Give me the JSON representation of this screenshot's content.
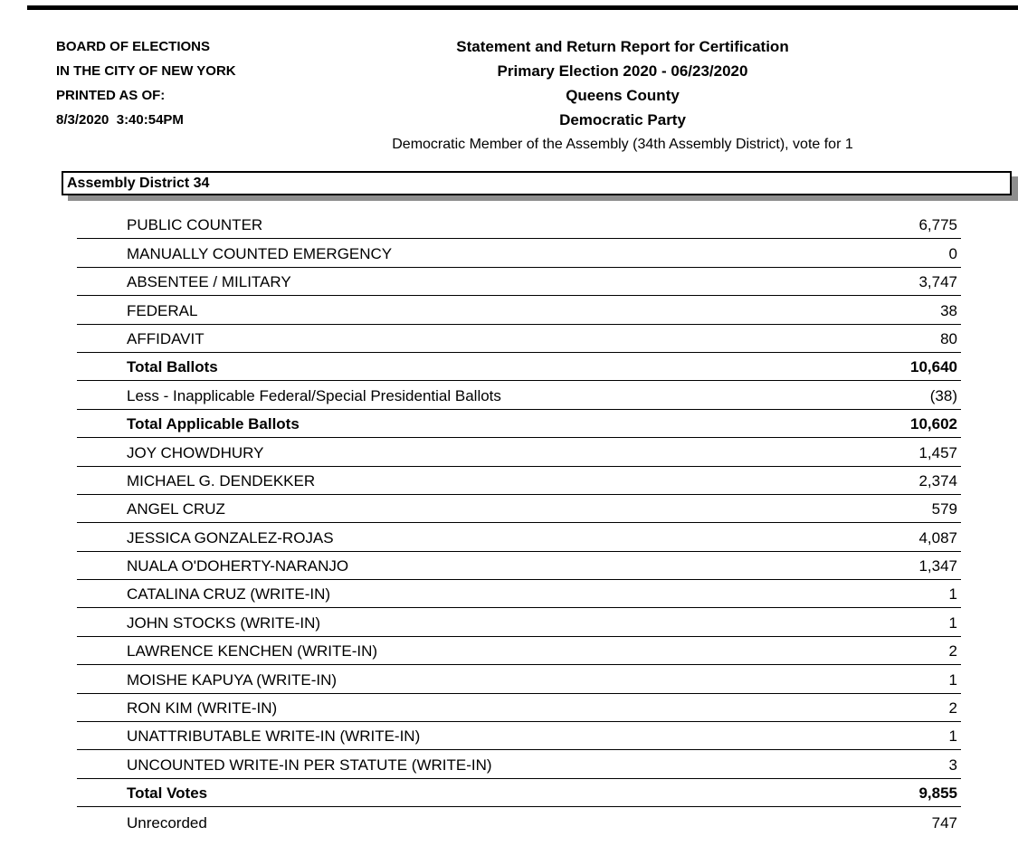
{
  "header": {
    "left": {
      "line1": "BOARD OF ELECTIONS",
      "line2": "IN THE CITY OF NEW YORK",
      "line3": "PRINTED AS OF:",
      "line4": "8/3/2020  3:40:54PM"
    },
    "center": {
      "title": "Statement and Return Report for Certification",
      "election": "Primary Election 2020 - 06/23/2020",
      "county": "Queens County",
      "party": "Democratic Party",
      "contest": "Democratic Member of the Assembly (34th Assembly District), vote for 1"
    }
  },
  "section": {
    "title": "Assembly District 34"
  },
  "table": {
    "rows": [
      {
        "label": "PUBLIC COUNTER",
        "value": "6,775"
      },
      {
        "label": "MANUALLY COUNTED EMERGENCY",
        "value": "0"
      },
      {
        "label": "ABSENTEE / MILITARY",
        "value": "3,747"
      },
      {
        "label": "FEDERAL",
        "value": "38"
      },
      {
        "label": "AFFIDAVIT",
        "value": "80"
      },
      {
        "label": "Total Ballots",
        "value": "10,640"
      },
      {
        "label": "Less - Inapplicable Federal/Special Presidential Ballots",
        "value": "(38)"
      },
      {
        "label": "Total Applicable Ballots",
        "value": "10,602"
      },
      {
        "label": "JOY CHOWDHURY",
        "value": "1,457"
      },
      {
        "label": "MICHAEL G. DENDEKKER",
        "value": "2,374"
      },
      {
        "label": "ANGEL CRUZ",
        "value": "579"
      },
      {
        "label": "JESSICA GONZALEZ-ROJAS",
        "value": "4,087"
      },
      {
        "label": "NUALA O'DOHERTY-NARANJO",
        "value": "1,347"
      },
      {
        "label": "CATALINA CRUZ (WRITE-IN)",
        "value": "1"
      },
      {
        "label": "JOHN STOCKS (WRITE-IN)",
        "value": "1"
      },
      {
        "label": "LAWRENCE KENCHEN (WRITE-IN)",
        "value": "2"
      },
      {
        "label": "MOISHE KAPUYA (WRITE-IN)",
        "value": "1"
      },
      {
        "label": "RON KIM (WRITE-IN)",
        "value": "2"
      },
      {
        "label": "UNATTRIBUTABLE WRITE-IN (WRITE-IN)",
        "value": "1"
      },
      {
        "label": "UNCOUNTED WRITE-IN PER STATUTE (WRITE-IN)",
        "value": "3"
      },
      {
        "label": "Total Votes",
        "value": "9,855"
      },
      {
        "label": "Unrecorded",
        "value": "747"
      }
    ]
  }
}
